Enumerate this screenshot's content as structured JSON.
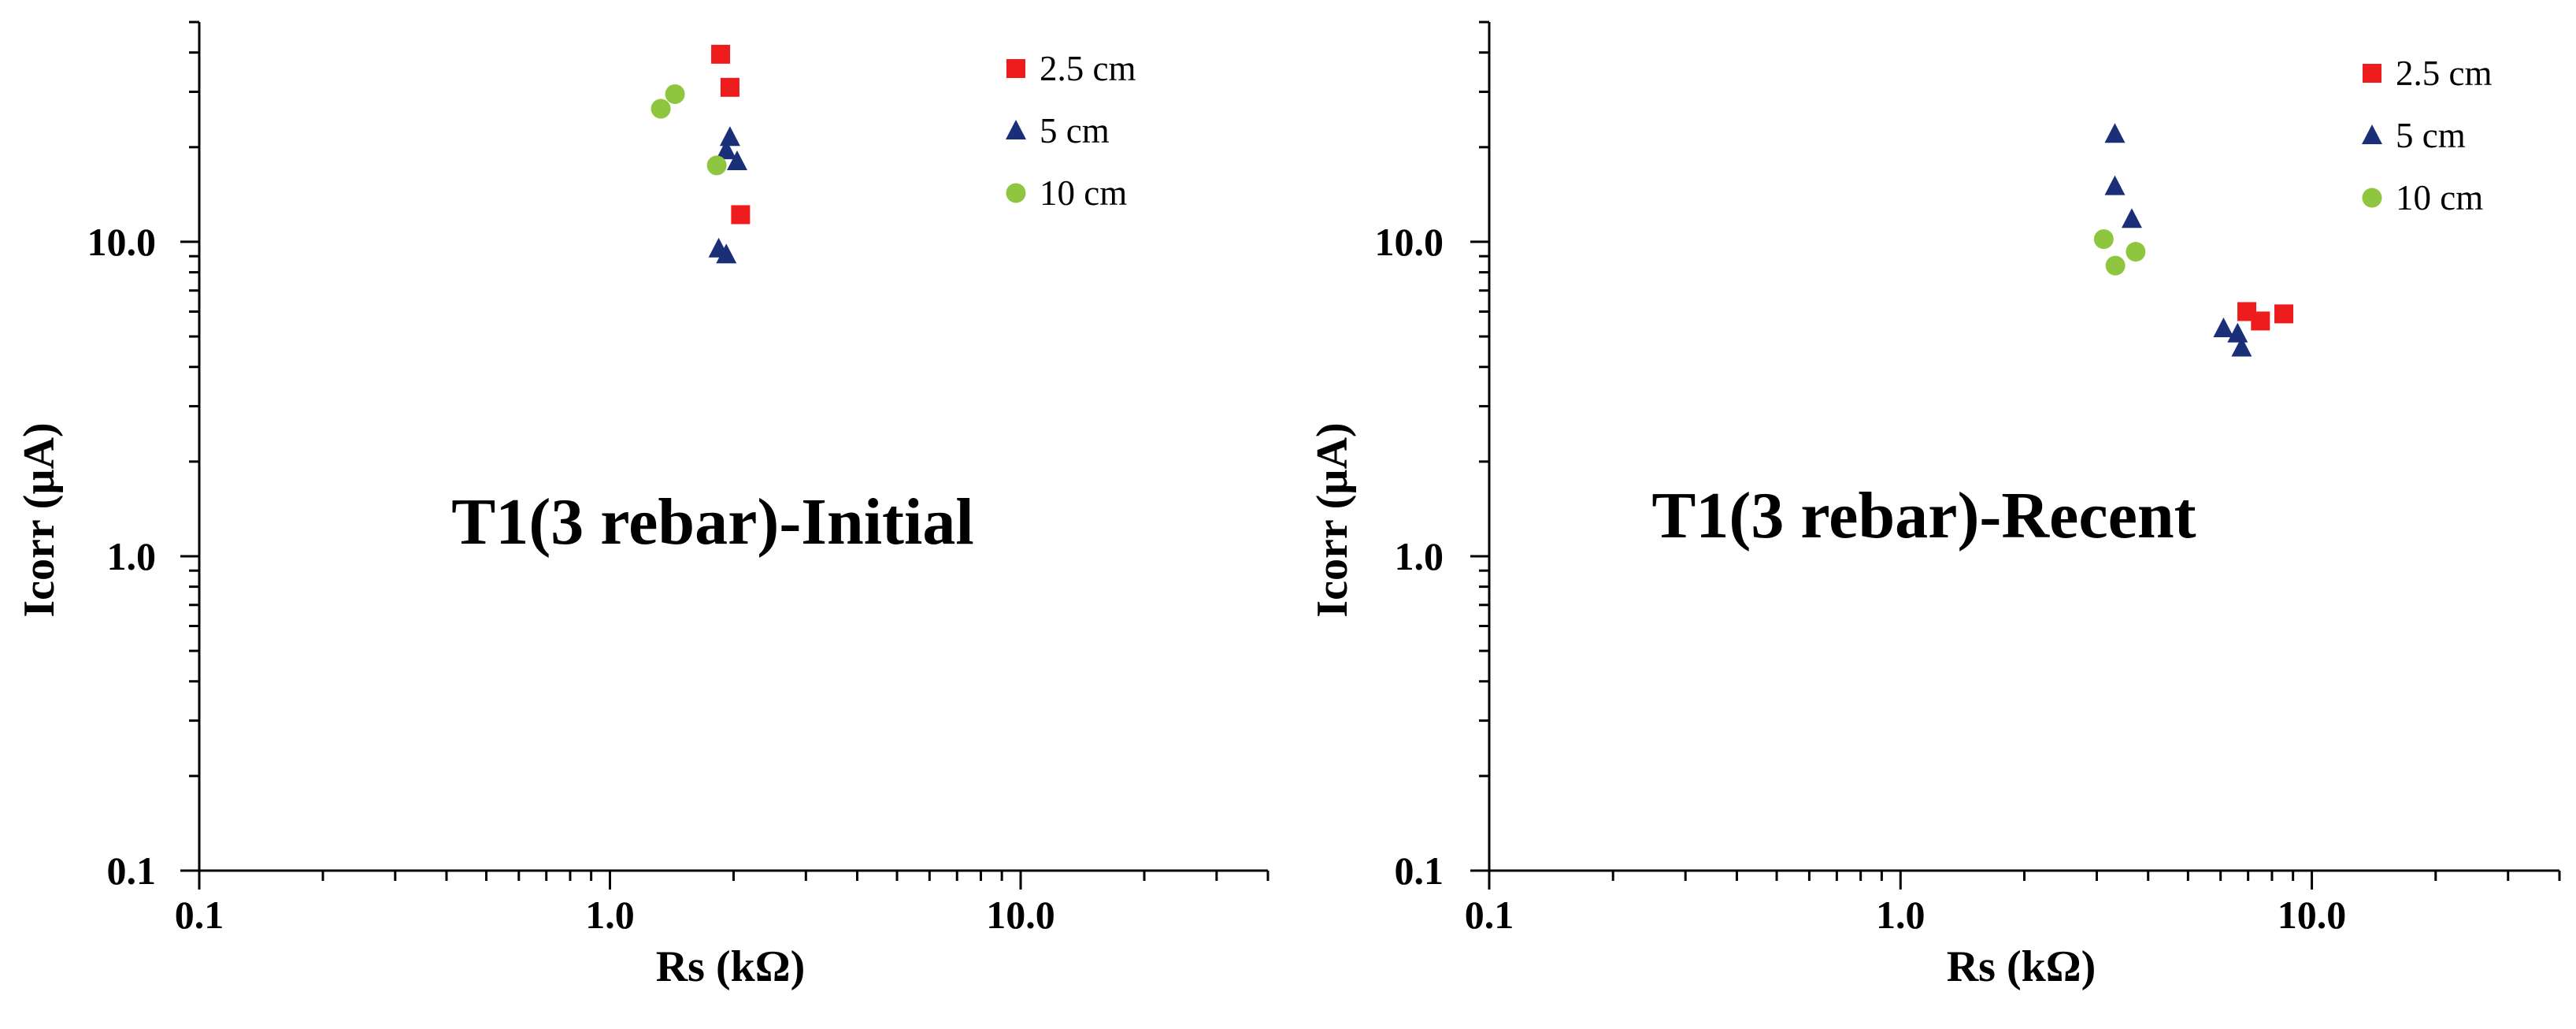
{
  "charts": [
    {
      "annotation": "T1(3 rebar)-Initial",
      "xlabel": "Rs (kΩ)",
      "ylabel": "Icorr (µA)"
    },
    {
      "annotation": "T1(3 rebar)-Recent",
      "xlabel": "Rs (kΩ)",
      "ylabel": "Icorr (µA)"
    }
  ],
  "chart_data": [
    {
      "type": "scatter",
      "title": "",
      "annotation": "T1(3 rebar)-Initial",
      "xlabel": "Rs (kΩ)",
      "ylabel": "Icorr (µA)",
      "x_scale": "log",
      "y_scale": "log",
      "xlim": [
        0.1,
        40
      ],
      "ylim": [
        0.1,
        50
      ],
      "x_ticks": [
        "0.1",
        "1.0",
        "10.0"
      ],
      "y_ticks": [
        "0.1",
        "1.0",
        "10.0"
      ],
      "grid": false,
      "legend_position": "top-right",
      "series": [
        {
          "name": "2.5 cm",
          "marker": "square",
          "color": "#ee1c1c",
          "points": [
            [
              1.86,
              39.5
            ],
            [
              1.96,
              31.0
            ],
            [
              2.08,
              12.2
            ]
          ]
        },
        {
          "name": "5 cm",
          "marker": "triangle",
          "color": "#1b2e78",
          "points": [
            [
              1.96,
              21.5
            ],
            [
              1.92,
              19.5
            ],
            [
              2.04,
              18.0
            ],
            [
              1.84,
              9.5
            ],
            [
              1.92,
              9.1
            ]
          ]
        },
        {
          "name": "10 cm",
          "marker": "circle",
          "color": "#8ec63f",
          "points": [
            [
              1.33,
              26.5
            ],
            [
              1.44,
              29.5
            ],
            [
              1.82,
              17.5
            ]
          ]
        }
      ]
    },
    {
      "type": "scatter",
      "title": "",
      "annotation": "T1(3 rebar)-Recent",
      "xlabel": "Rs (kΩ)",
      "ylabel": "Icorr (µA)",
      "x_scale": "log",
      "y_scale": "log",
      "xlim": [
        0.1,
        40
      ],
      "ylim": [
        0.1,
        50
      ],
      "x_ticks": [
        "0.1",
        "1.0",
        "10.0"
      ],
      "y_ticks": [
        "0.1",
        "1.0",
        "10.0"
      ],
      "grid": false,
      "legend_position": "top-right",
      "series": [
        {
          "name": "2.5 cm",
          "marker": "square",
          "color": "#ee1c1c",
          "points": [
            [
              6.95,
              6.0
            ],
            [
              7.5,
              5.6
            ],
            [
              8.55,
              5.9
            ]
          ]
        },
        {
          "name": "5 cm",
          "marker": "triangle",
          "color": "#1b2e78",
          "points": [
            [
              3.32,
              22.0
            ],
            [
              3.32,
              15.0
            ],
            [
              3.65,
              11.8
            ],
            [
              6.1,
              5.3
            ],
            [
              6.6,
              5.1
            ],
            [
              6.75,
              4.6
            ]
          ]
        },
        {
          "name": "10 cm",
          "marker": "circle",
          "color": "#8ec63f",
          "points": [
            [
              3.12,
              10.2
            ],
            [
              3.33,
              8.4
            ],
            [
              3.73,
              9.3
            ]
          ]
        }
      ]
    }
  ]
}
